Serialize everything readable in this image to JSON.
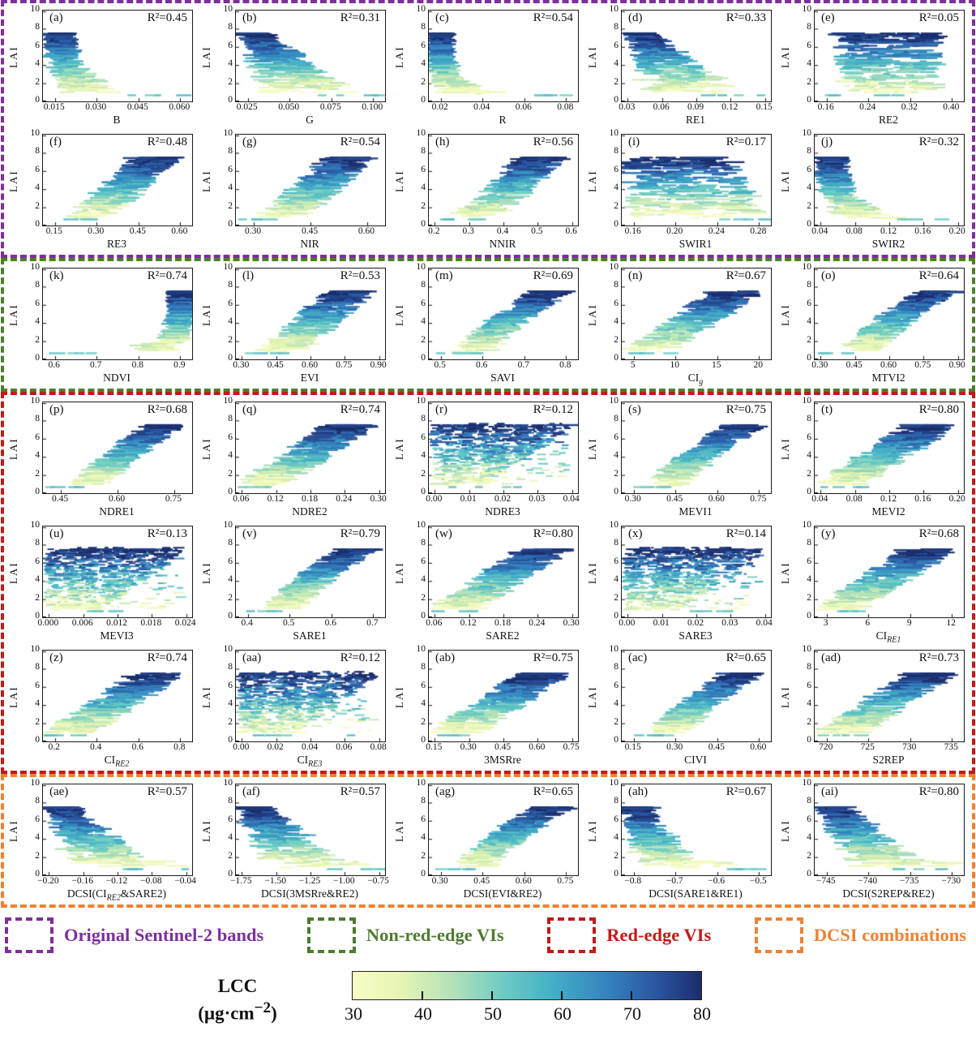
{
  "chart_data": {
    "type": "scatter-grid",
    "description": "LAI vs Sentinel-2 bands / vegetation indices, points colored by LCC",
    "ylabel": "LAI",
    "ylim": [
      0,
      10
    ],
    "yticks": [
      "0",
      "2",
      "4",
      "6",
      "8",
      "10"
    ],
    "r2_prefix": "R²=",
    "color_variable": {
      "name": "LCC",
      "min": 30,
      "max": 80
    },
    "groups": [
      {
        "id": "sentinel2-bands",
        "label": "Original Sentinel-2 bands",
        "color": "#7d2f9c",
        "panels": [
          {
            "id": "a",
            "letter": "(a)",
            "r2": "0.45",
            "xlabel": [
              [
                "t",
                "B"
              ]
            ],
            "xticks": [
              "0.015",
              "0.030",
              "0.045",
              "0.060"
            ],
            "pattern": "negL"
          },
          {
            "id": "b",
            "letter": "(b)",
            "r2": "0.31",
            "xlabel": [
              [
                "t",
                "G"
              ]
            ],
            "xticks": [
              "0.025",
              "0.050",
              "0.075",
              "0.100"
            ],
            "pattern": "negWide"
          },
          {
            "id": "c",
            "letter": "(c)",
            "r2": "0.54",
            "xlabel": [
              [
                "t",
                "R"
              ]
            ],
            "xticks": [
              "0.02",
              "0.04",
              "0.06",
              "0.08"
            ],
            "pattern": "negSteep"
          },
          {
            "id": "d",
            "letter": "(d)",
            "r2": "0.33",
            "xlabel": [
              [
                "t",
                "RE1"
              ]
            ],
            "xticks": [
              "0.03",
              "0.06",
              "0.09",
              "0.12",
              "0.15"
            ],
            "pattern": "negWide"
          },
          {
            "id": "e",
            "letter": "(e)",
            "r2": "0.05",
            "xlabel": [
              [
                "t",
                "RE2"
              ]
            ],
            "xticks": [
              "0.16",
              "0.24",
              "0.32",
              "0.40"
            ],
            "pattern": "cluster"
          },
          {
            "id": "f",
            "letter": "(f)",
            "r2": "0.48",
            "xlabel": [
              [
                "t",
                "RE3"
              ]
            ],
            "xticks": [
              "0.15",
              "0.30",
              "0.45",
              "0.60"
            ],
            "pattern": "pos"
          },
          {
            "id": "g",
            "letter": "(g)",
            "r2": "0.54",
            "xlabel": [
              [
                "t",
                "NIR"
              ]
            ],
            "xticks": [
              "0.30",
              "0.45",
              "0.60"
            ],
            "pattern": "pos"
          },
          {
            "id": "h",
            "letter": "(h)",
            "r2": "0.56",
            "xlabel": [
              [
                "t",
                "NNIR"
              ]
            ],
            "xticks": [
              "0.2",
              "0.3",
              "0.4",
              "0.5",
              "0.6"
            ],
            "pattern": "pos"
          },
          {
            "id": "i",
            "letter": "(i)",
            "r2": "0.17",
            "xlabel": [
              [
                "t",
                "SWIR1"
              ]
            ],
            "xticks": [
              "0.16",
              "0.20",
              "0.24",
              "0.28"
            ],
            "pattern": "negFlatWide"
          },
          {
            "id": "j",
            "letter": "(j)",
            "r2": "0.32",
            "xlabel": [
              [
                "t",
                "SWIR2"
              ]
            ],
            "xticks": [
              "0.04",
              "0.08",
              "0.12",
              "0.16",
              "0.20"
            ],
            "pattern": "negL"
          }
        ]
      },
      {
        "id": "non-red-edge-vis",
        "label": "Non-red-edge VIs",
        "color": "#4e7c2f",
        "panels": [
          {
            "id": "k",
            "letter": "(k)",
            "r2": "0.74",
            "xlabel": [
              [
                "t",
                "NDVI"
              ]
            ],
            "xticks": [
              "0.6",
              "0.7",
              "0.8",
              "0.9"
            ],
            "pattern": "steepRight"
          },
          {
            "id": "l",
            "letter": "(l)",
            "r2": "0.53",
            "xlabel": [
              [
                "t",
                "EVI"
              ]
            ],
            "xticks": [
              "0.30",
              "0.45",
              "0.60",
              "0.75",
              "0.90"
            ],
            "pattern": "pos"
          },
          {
            "id": "m",
            "letter": "(m)",
            "r2": "0.69",
            "xlabel": [
              [
                "t",
                "SAVI"
              ]
            ],
            "xticks": [
              "0.5",
              "0.6",
              "0.7",
              "0.8"
            ],
            "pattern": "posCurved"
          },
          {
            "id": "n",
            "letter": "(n)",
            "r2": "0.67",
            "xlabel": [
              [
                "t",
                "CI"
              ],
              [
                "s",
                "g"
              ]
            ],
            "xticks": [
              "5",
              "10",
              "15",
              "20"
            ],
            "pattern": "posLin"
          },
          {
            "id": "o",
            "letter": "(o)",
            "r2": "0.64",
            "xlabel": [
              [
                "t",
                "MTVI2"
              ]
            ],
            "xticks": [
              "0.30",
              "0.45",
              "0.60",
              "0.75",
              "0.90"
            ],
            "pattern": "posCurved"
          }
        ]
      },
      {
        "id": "red-edge-vis",
        "label": "Red-edge VIs",
        "color": "#bf1b18",
        "panels": [
          {
            "id": "p",
            "letter": "(p)",
            "r2": "0.68",
            "xlabel": [
              [
                "t",
                "NDRE1"
              ]
            ],
            "xticks": [
              "0.45",
              "0.60",
              "0.75"
            ],
            "pattern": "posCurved"
          },
          {
            "id": "q",
            "letter": "(q)",
            "r2": "0.74",
            "xlabel": [
              [
                "t",
                "NDRE2"
              ]
            ],
            "xticks": [
              "0.06",
              "0.12",
              "0.18",
              "0.24",
              "0.30"
            ],
            "pattern": "posLin"
          },
          {
            "id": "r",
            "letter": "(r)",
            "r2": "0.12",
            "xlabel": [
              [
                "t",
                "NDRE3"
              ]
            ],
            "xticks": [
              "0.00",
              "0.01",
              "0.02",
              "0.03",
              "0.04"
            ],
            "pattern": "block"
          },
          {
            "id": "s",
            "letter": "(s)",
            "r2": "0.75",
            "xlabel": [
              [
                "t",
                "MEVI1"
              ]
            ],
            "xticks": [
              "0.30",
              "0.45",
              "0.60",
              "0.75"
            ],
            "pattern": "posCurved"
          },
          {
            "id": "t",
            "letter": "(t)",
            "r2": "0.80",
            "xlabel": [
              [
                "t",
                "MEVI2"
              ]
            ],
            "xticks": [
              "0.04",
              "0.08",
              "0.12",
              "0.16",
              "0.20"
            ],
            "pattern": "posLin"
          },
          {
            "id": "u",
            "letter": "(u)",
            "r2": "0.13",
            "xlabel": [
              [
                "t",
                "MEVI3"
              ]
            ],
            "xticks": [
              "0.000",
              "0.006",
              "0.012",
              "0.018",
              "0.024"
            ],
            "pattern": "block"
          },
          {
            "id": "v",
            "letter": "(v)",
            "r2": "0.79",
            "xlabel": [
              [
                "t",
                "SARE1"
              ]
            ],
            "xticks": [
              "0.4",
              "0.5",
              "0.6",
              "0.7"
            ],
            "pattern": "posCurved"
          },
          {
            "id": "w",
            "letter": "(w)",
            "r2": "0.80",
            "xlabel": [
              [
                "t",
                "SARE2"
              ]
            ],
            "xticks": [
              "0.06",
              "0.12",
              "0.18",
              "0.24",
              "0.30"
            ],
            "pattern": "posLin"
          },
          {
            "id": "x",
            "letter": "(x)",
            "r2": "0.14",
            "xlabel": [
              [
                "t",
                "SARE3"
              ]
            ],
            "xticks": [
              "0.00",
              "0.01",
              "0.02",
              "0.03",
              "0.04"
            ],
            "pattern": "block"
          },
          {
            "id": "y",
            "letter": "(y)",
            "r2": "0.68",
            "xlabel": [
              [
                "t",
                "CI"
              ],
              [
                "s",
                "RE1"
              ]
            ],
            "xticks": [
              "3",
              "6",
              "9",
              "12"
            ],
            "pattern": "posLin"
          },
          {
            "id": "z",
            "letter": "(z)",
            "r2": "0.74",
            "xlabel": [
              [
                "t",
                "CI"
              ],
              [
                "s",
                "RE2"
              ]
            ],
            "xticks": [
              "0.2",
              "0.4",
              "0.6",
              "0.8"
            ],
            "pattern": "posLin"
          },
          {
            "id": "aa",
            "letter": "(aa)",
            "r2": "0.12",
            "xlabel": [
              [
                "t",
                "CI"
              ],
              [
                "s",
                "RE3"
              ]
            ],
            "xticks": [
              "0.00",
              "0.02",
              "0.04",
              "0.06",
              "0.08"
            ],
            "pattern": "block"
          },
          {
            "id": "ab",
            "letter": "(ab)",
            "r2": "0.75",
            "xlabel": [
              [
                "t",
                "3MSRre"
              ]
            ],
            "xticks": [
              "0.15",
              "0.30",
              "0.45",
              "0.60",
              "0.75"
            ],
            "pattern": "posLin"
          },
          {
            "id": "ac",
            "letter": "(ac)",
            "r2": "0.65",
            "xlabel": [
              [
                "t",
                "CIVI"
              ]
            ],
            "xticks": [
              "0.15",
              "0.30",
              "0.45",
              "0.60"
            ],
            "pattern": "posCurved"
          },
          {
            "id": "ad",
            "letter": "(ad)",
            "r2": "0.73",
            "xlabel": [
              [
                "t",
                "S2REP"
              ]
            ],
            "xticks": [
              "720",
              "725",
              "730",
              "735"
            ],
            "pattern": "posLin"
          }
        ]
      },
      {
        "id": "dcsi-combinations",
        "label": "DCSI combinations",
        "color": "#ee8134",
        "panels": [
          {
            "id": "ae",
            "letter": "(ae)",
            "r2": "0.57",
            "xlabel": [
              [
                "t",
                "DCSI(CI"
              ],
              [
                "s",
                "RE2"
              ],
              [
                "t",
                "&SARE2)"
              ]
            ],
            "xticks": [
              "−0.20",
              "−0.16",
              "−0.12",
              "−0.08",
              "−0.04"
            ],
            "pattern": "negCloud"
          },
          {
            "id": "af",
            "letter": "(af)",
            "r2": "0.57",
            "xlabel": [
              [
                "t",
                "DCSI(3MSRre&RE2)"
              ]
            ],
            "xticks": [
              "−1.75",
              "−1.50",
              "−1.25",
              "−1.00",
              "−0.75"
            ],
            "pattern": "negCloud"
          },
          {
            "id": "ag",
            "letter": "(ag)",
            "r2": "0.65",
            "xlabel": [
              [
                "t",
                "DCSI(EVI&RE2)"
              ]
            ],
            "xticks": [
              "0.30",
              "0.45",
              "0.60",
              "0.75"
            ],
            "pattern": "posCurved"
          },
          {
            "id": "ah",
            "letter": "(ah)",
            "r2": "0.67",
            "xlabel": [
              [
                "t",
                "DCSI(SARE1&RE1)"
              ]
            ],
            "xticks": [
              "−0.8",
              "−0.7",
              "−0.6",
              "−0.5"
            ],
            "pattern": "negCloudTight"
          },
          {
            "id": "ai",
            "letter": "(ai)",
            "r2": "0.80",
            "xlabel": [
              [
                "t",
                "DCSI(S2REP&RE2)"
              ]
            ],
            "xticks": [
              "−745",
              "−740",
              "−735",
              "−730"
            ],
            "pattern": "negCloud"
          }
        ]
      }
    ],
    "colorbar": {
      "title": "LCC",
      "units_pre": "(µg·cm",
      "units_sup": "−2",
      "units_post": ")",
      "ticks": [
        "30",
        "40",
        "50",
        "60",
        "70",
        "80"
      ],
      "gradient": [
        "#f8fcc5",
        "#e4f4b4",
        "#b4e1b9",
        "#6ecdc3",
        "#44afc6",
        "#3688c0",
        "#2c5aa6",
        "#1b2d6c"
      ]
    }
  }
}
